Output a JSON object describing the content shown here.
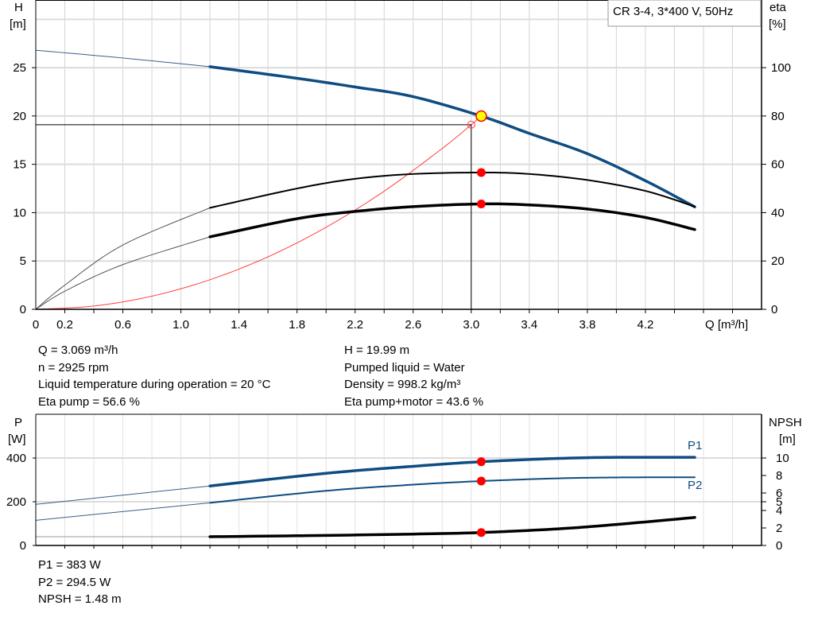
{
  "chart_data": [
    {
      "type": "line",
      "title": "CR 3-4, 3*400 V, 50Hz",
      "xlabel": "Q [m³/h]",
      "ylabel": [
        "H",
        "[m]"
      ],
      "y2label": [
        "eta",
        "[%]"
      ],
      "xlim": [
        0,
        5.0
      ],
      "ylim": [
        0,
        32
      ],
      "y2lim": [
        0,
        128
      ],
      "xticks": [
        "0",
        "0.2",
        "0.6",
        "1.0",
        "1.4",
        "1.8",
        "2.2",
        "2.6",
        "3.0",
        "3.4",
        "3.8",
        "4.2"
      ],
      "yticks": [
        "0",
        "5",
        "10",
        "15",
        "20",
        "25"
      ],
      "y2ticks": [
        "0",
        "20",
        "40",
        "60",
        "80",
        "100"
      ],
      "grid": true,
      "series": [
        {
          "key": "H",
          "axis": "left",
          "color": "#0f4c81",
          "points": [
            [
              0,
              26.8
            ],
            [
              0.6,
              26.0
            ],
            [
              1.2,
              25.1
            ],
            [
              1.8,
              23.9
            ],
            [
              2.2,
              23.0
            ],
            [
              2.6,
              22.0
            ],
            [
              3.069,
              19.99
            ],
            [
              3.4,
              18.2
            ],
            [
              3.8,
              16.1
            ],
            [
              4.2,
              13.3
            ],
            [
              4.54,
              10.6
            ]
          ]
        },
        {
          "key": "eta_pump",
          "axis": "right",
          "color": "#000000",
          "points": [
            [
              0,
              0
            ],
            [
              0.2,
              10
            ],
            [
              0.6,
              26.6
            ],
            [
              1.2,
              42
            ],
            [
              1.8,
              50
            ],
            [
              2.2,
              54
            ],
            [
              2.6,
              56
            ],
            [
              3.069,
              56.6
            ],
            [
              3.4,
              56
            ],
            [
              3.8,
              53.5
            ],
            [
              4.2,
              49
            ],
            [
              4.54,
              42.5
            ]
          ]
        },
        {
          "key": "eta_total",
          "axis": "right",
          "color": "#000000",
          "points": [
            [
              0,
              0
            ],
            [
              0.2,
              7.5
            ],
            [
              0.6,
              18.5
            ],
            [
              1.2,
              30
            ],
            [
              1.8,
              37.5
            ],
            [
              2.2,
              40.5
            ],
            [
              2.6,
              42.5
            ],
            [
              3.069,
              43.6
            ],
            [
              3.4,
              43.2
            ],
            [
              3.8,
              41.5
            ],
            [
              4.2,
              38
            ],
            [
              4.54,
              33
            ]
          ]
        },
        {
          "key": "system",
          "axis": "left",
          "color": "#ff0000",
          "points": [
            [
              0,
              0
            ],
            [
              0.4,
              0.34
            ],
            [
              0.8,
              1.36
            ],
            [
              1.2,
              3.06
            ],
            [
              1.6,
              5.43
            ],
            [
              2.0,
              8.49
            ],
            [
              2.4,
              12.22
            ],
            [
              2.8,
              16.64
            ],
            [
              3.0,
              19.1
            ],
            [
              3.069,
              19.99
            ]
          ]
        }
      ],
      "duty_point": {
        "Q": 3.069,
        "H": 19.99,
        "eta_pump": 56.6,
        "eta_total": 43.6
      },
      "requested_point": {
        "Q": 3.0,
        "H": 19.1
      }
    },
    {
      "type": "line",
      "ylabel": [
        "P",
        "[W]"
      ],
      "y2label": [
        "NPSH",
        "[m]"
      ],
      "xlim": [
        0,
        5.0
      ],
      "ylim": [
        0,
        600
      ],
      "y2lim": [
        0,
        15
      ],
      "yticks": [
        "0",
        "200",
        "400"
      ],
      "y2ticks": [
        "0",
        "2",
        "4",
        "5",
        "6",
        "8",
        "10"
      ],
      "grid": true,
      "series": [
        {
          "key": "P1",
          "name": "P1",
          "axis": "left",
          "color": "#0f4c81",
          "points": [
            [
              0,
              188
            ],
            [
              1.2,
              272
            ],
            [
              2.0,
              330
            ],
            [
              2.6,
              362
            ],
            [
              3.069,
              383
            ],
            [
              3.6,
              398
            ],
            [
              4.0,
              403
            ],
            [
              4.54,
              403
            ]
          ]
        },
        {
          "key": "P2",
          "name": "P2",
          "axis": "left",
          "color": "#0f4c81",
          "points": [
            [
              0,
              115
            ],
            [
              1.2,
              195
            ],
            [
              2.0,
              250
            ],
            [
              2.6,
              278
            ],
            [
              3.069,
              294.5
            ],
            [
              3.6,
              307
            ],
            [
              4.0,
              311
            ],
            [
              4.54,
              312
            ]
          ]
        },
        {
          "key": "NPSH",
          "axis": "right",
          "color": "#000000",
          "points": [
            [
              0,
              1.0
            ],
            [
              1.2,
              1.0
            ],
            [
              2.0,
              1.15
            ],
            [
              2.6,
              1.3
            ],
            [
              3.069,
              1.48
            ],
            [
              3.6,
              1.9
            ],
            [
              4.0,
              2.4
            ],
            [
              4.54,
              3.2
            ]
          ]
        }
      ],
      "duty_point": {
        "Q": 3.069,
        "P1": 383,
        "P2": 294.5,
        "NPSH": 1.48
      }
    }
  ],
  "results_top": {
    "left": [
      "Q = 3.069 m³/h",
      "n = 2925 rpm",
      "Liquid temperature during operation = 20 °C",
      "Eta pump = 56.6 %"
    ],
    "right": [
      "H = 19.99 m",
      "Pumped liquid = Water",
      "Density = 998.2 kg/m³",
      "Eta pump+motor = 43.6 %"
    ]
  },
  "results_bottom": [
    "P1 = 383 W",
    "P2 = 294.5 W",
    "NPSH = 1.48 m"
  ],
  "colors": {
    "curve_blue": "#0f4c81",
    "duty_marker": "#ff0000",
    "duty_fill": "#ffff00",
    "grid": "#d9d9d9"
  }
}
